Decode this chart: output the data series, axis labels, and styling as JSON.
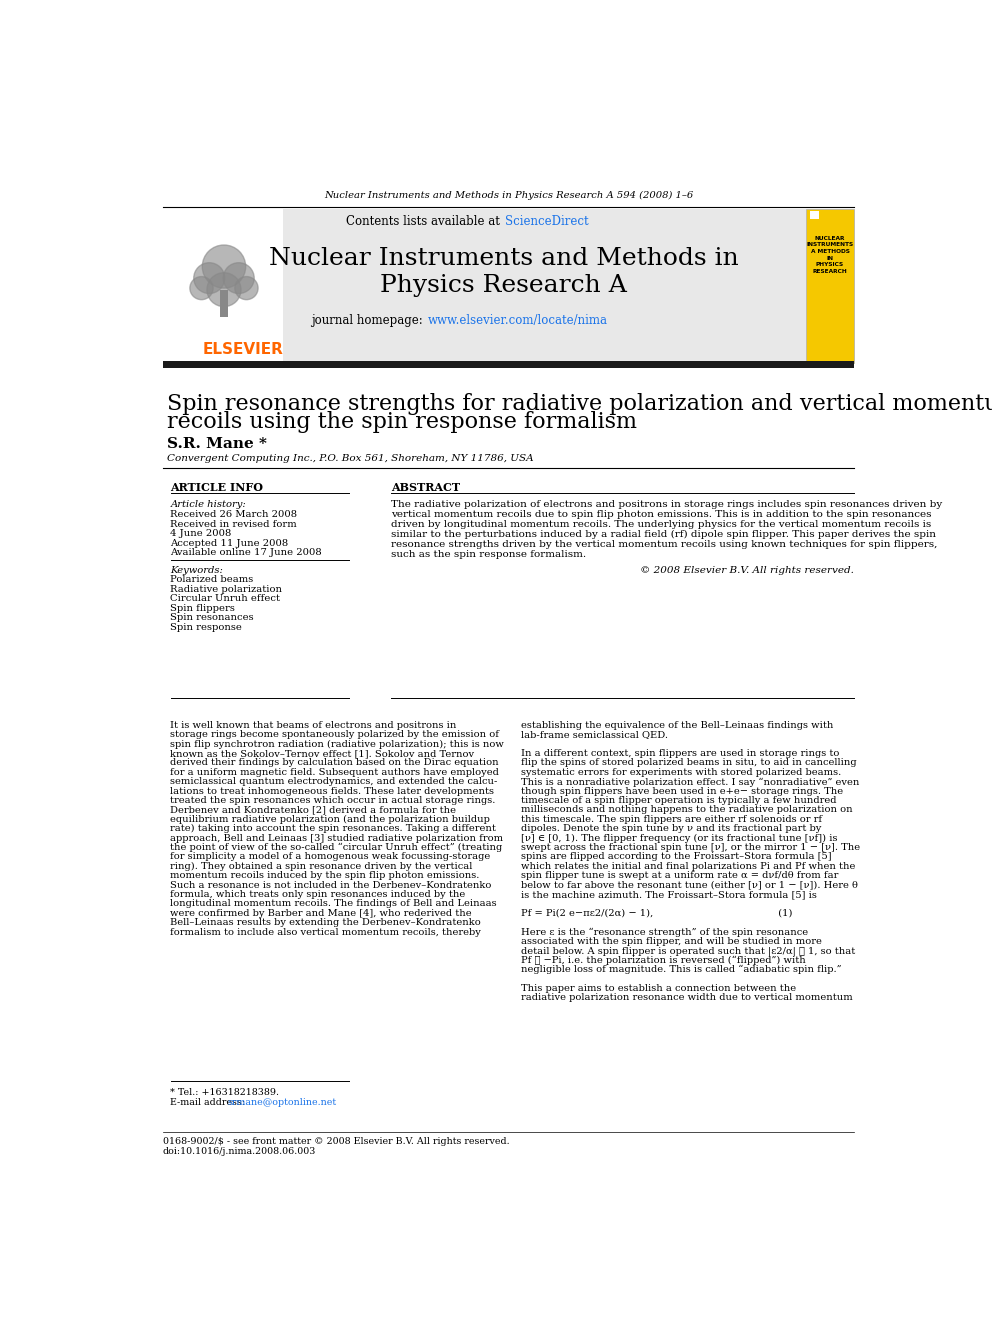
{
  "page_header": "Nuclear Instruments and Methods in Physics Research A 594 (2008) 1–6",
  "journal_banner_text1": "Contents lists available at ",
  "journal_sciencedirect": "ScienceDirect",
  "journal_name_line1": "Nuclear Instruments and Methods in",
  "journal_name_line2": "Physics Research A",
  "journal_homepage_label": "journal homepage: ",
  "journal_homepage_url": "www.elsevier.com/locate/nima",
  "sciencedirect_color": "#1a73e8",
  "elsevier_color": "#ff6600",
  "banner_bg": "#e8e8e8",
  "paper_title_line1": "Spin resonance strengths for radiative polarization and vertical momentum",
  "paper_title_line2": "recoils using the spin response formalism",
  "author": "S.R. Mane *",
  "affiliation": "Convergent Computing Inc., P.O. Box 561, Shoreham, NY 11786, USA",
  "article_info_header": "ARTICLE INFO",
  "abstract_header": "ABSTRACT",
  "article_history_label": "Article history:",
  "history_items": [
    "Received 26 March 2008",
    "Received in revised form",
    "4 June 2008",
    "Accepted 11 June 2008",
    "Available online 17 June 2008"
  ],
  "keywords_label": "Keywords:",
  "keywords": [
    "Polarized beams",
    "Radiative polarization",
    "Circular Unruh effect",
    "Spin flippers",
    "Spin resonances",
    "Spin response"
  ],
  "abstract_text_lines": [
    "The radiative polarization of electrons and positrons in storage rings includes spin resonances driven by",
    "vertical momentum recoils due to spin flip photon emissions. This is in addition to the spin resonances",
    "driven by longitudinal momentum recoils. The underlying physics for the vertical momentum recoils is",
    "similar to the perturbations induced by a radial field (rf) dipole spin flipper. This paper derives the spin",
    "resonance strengths driven by the vertical momentum recoils using known techniques for spin flippers,",
    "such as the spin response formalism."
  ],
  "copyright": "© 2008 Elsevier B.V. All rights reserved.",
  "body_col1_lines": [
    "It is well known that beams of electrons and positrons in",
    "storage rings become spontaneously polarized by the emission of",
    "spin flip synchrotron radiation (radiative polarization); this is now",
    "known as the Sokolov–Ternov effect [1]. Sokolov and Ternov",
    "derived their findings by calculation based on the Dirac equation",
    "for a uniform magnetic field. Subsequent authors have employed",
    "semiclassical quantum electrodynamics, and extended the calcu-",
    "lations to treat inhomogeneous fields. These later developments",
    "treated the spin resonances which occur in actual storage rings.",
    "Derbenev and Kondratenko [2] derived a formula for the",
    "equilibrium radiative polarization (and the polarization buildup",
    "rate) taking into account the spin resonances. Taking a different",
    "approach, Bell and Leinaas [3] studied radiative polarization from",
    "the point of view of the so-called “circular Unruh effect” (treating",
    "for simplicity a model of a homogenous weak focussing-storage",
    "ring). They obtained a spin resonance driven by the vertical",
    "momentum recoils induced by the spin flip photon emissions.",
    "Such a resonance is not included in the Derbenev–Kondratenko",
    "formula, which treats only spin resonances induced by the",
    "longitudinal momentum recoils. The findings of Bell and Leinaas",
    "were confirmed by Barber and Mane [4], who rederived the",
    "Bell–Leinaas results by extending the Derbenev–Kondratenko",
    "formalism to include also vertical momentum recoils, thereby"
  ],
  "body_col2_lines": [
    "establishing the equivalence of the Bell–Leinaas findings with",
    "lab-frame semiclassical QED.",
    "",
    "In a different context, spin flippers are used in storage rings to",
    "flip the spins of stored polarized beams in situ, to aid in cancelling",
    "systematic errors for experiments with stored polarized beams.",
    "This is a nonradiative polarization effect. I say “nonradiative” even",
    "though spin flippers have been used in e+e− storage rings. The",
    "timescale of a spin flipper operation is typically a few hundred",
    "milliseconds and nothing happens to the radiative polarization on",
    "this timescale. The spin flippers are either rf solenoids or rf",
    "dipoles. Denote the spin tune by ν and its fractional part by",
    "[ν] ∈ [0, 1). The flipper frequency (or its fractional tune [νf]) is",
    "swept across the fractional spin tune [ν], or the mirror 1 − [ν]. The",
    "spins are flipped according to the Froissart–Stora formula [5]",
    "which relates the initial and final polarizations Pi and Pf when the",
    "spin flipper tune is swept at a uniform rate α = dνf/dθ from far",
    "below to far above the resonant tune (either [ν] or 1 − [ν]). Here θ",
    "is the machine azimuth. The Froissart–Stora formula [5] is",
    "",
    "Pf = Pi(2 e−πε2/(2α) − 1),                                        (1)",
    "",
    "Here ε is the “resonance strength” of the spin resonance",
    "associated with the spin flipper, and will be studied in more",
    "detail below. A spin flipper is operated such that |ε2/α| ≫ 1, so that",
    "Pf ≅ −Pi, i.e. the polarization is reversed (“flipped”) with",
    "negligible loss of magnitude. This is called “adiabatic spin flip.”",
    "",
    "This paper aims to establish a connection between the",
    "radiative polarization resonance width due to vertical momentum"
  ],
  "footnote_tel": "* Tel.: +16318218389.",
  "footnote_email_label": "E-mail address: ",
  "footnote_email": "srmane@optonline.net",
  "footer_issn": "0168-9002/$ - see front matter © 2008 Elsevier B.V. All rights reserved.",
  "footer_doi": "doi:10.1016/j.nima.2008.06.003",
  "black_bar_color": "#1a1a1a",
  "cover_bg": "#f5c800",
  "cover_text": "NUCLEAR\nINSTRUMENTS\nA METHODS\nIN\nPHYSICS\nRESEARCH"
}
